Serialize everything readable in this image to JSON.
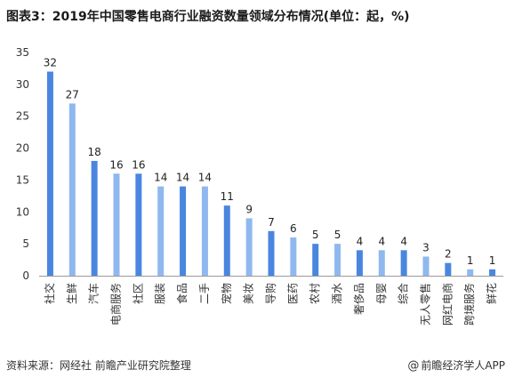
{
  "title": "图表3：2019年中国零售电商行业融资数量领域分布情况(单位：起，%)",
  "footer": {
    "source": "资料来源：网经社 前瞻产业研究院整理",
    "brand_at": "@",
    "brand": "前瞻经济学人APP"
  },
  "colors": {
    "dark_bar": "#4a86e0",
    "light_bar": "#8fb8ee",
    "axis": "#9a9a9a",
    "grid": "#e4e4e4"
  },
  "chart_data": {
    "type": "bar",
    "categories": [
      "社交",
      "生鲜",
      "汽车",
      "电商服务",
      "社区",
      "服装",
      "食品",
      "二手",
      "宠物",
      "美妆",
      "导购",
      "医药",
      "农村",
      "酒水",
      "奢侈品",
      "母婴",
      "综合",
      "无人零售",
      "网红电商",
      "跨境服务",
      "鲜花"
    ],
    "values": [
      32,
      27,
      18,
      16,
      16,
      14,
      14,
      14,
      11,
      9,
      7,
      6,
      5,
      5,
      4,
      4,
      4,
      3,
      2,
      1,
      1
    ],
    "ylim": [
      0,
      35
    ],
    "yticks": [
      0,
      5,
      10,
      15,
      20,
      25,
      30,
      35
    ],
    "data_labels": true,
    "grid": false,
    "legend": "none"
  }
}
